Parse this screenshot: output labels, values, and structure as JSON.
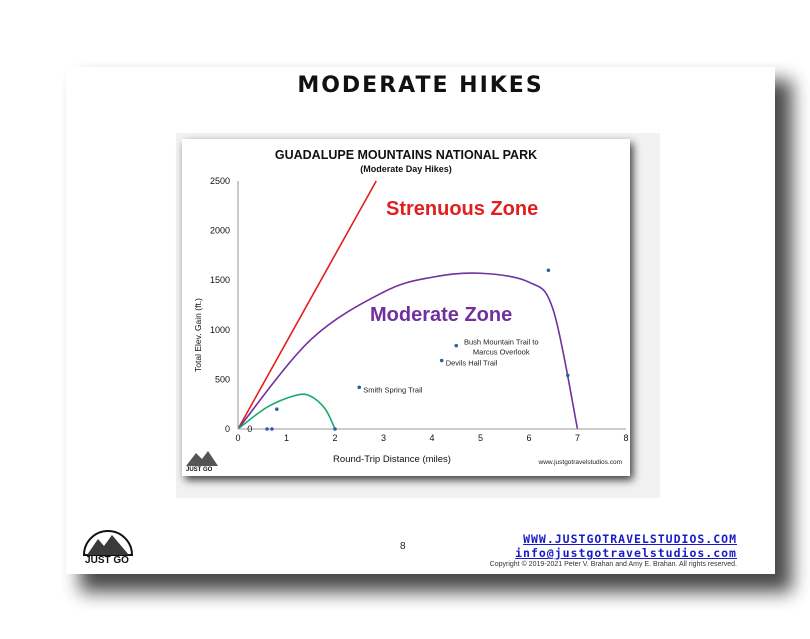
{
  "page": {
    "title": "MODERATE HIKES",
    "page_number": "8",
    "website": "WWW.JUSTGOTRAVELSTUDIOS.COM",
    "email": "info@justgotravelstudios.com",
    "copyright": "Copyright © 2019-2021 Peter V. Brahan and Amy E. Brahan.  All rights reserved.",
    "logo_text": "JUST GO"
  },
  "chart_data": {
    "type": "scatter",
    "title": "GUADALUPE MOUNTAINS NATIONAL PARK",
    "subtitle": "(Moderate Day Hikes)",
    "xlabel": "Round-Trip Distance (miles)",
    "ylabel": "Total Elev. Gain (ft.)",
    "xlim": [
      0,
      8
    ],
    "ylim": [
      0,
      2500
    ],
    "xticks": [
      0,
      1,
      2,
      3,
      4,
      5,
      6,
      7,
      8
    ],
    "yticks": [
      0,
      500,
      1000,
      1500,
      2000,
      2500
    ],
    "grid": false,
    "watermark": "www.justgotravelstudios.com",
    "zone_labels": [
      {
        "text": "Strenuous Zone",
        "color": "#e0201e"
      },
      {
        "text": "Moderate Zone",
        "color": "#7030a0"
      }
    ],
    "series": [
      {
        "type": "scatter",
        "color": "#2e5ea8",
        "points": [
          {
            "x": 0.6,
            "y": 0
          },
          {
            "x": 0.7,
            "y": 0
          },
          {
            "x": 0.8,
            "y": 200
          },
          {
            "x": 2.0,
            "y": 0
          },
          {
            "x": 2.5,
            "y": 420,
            "label": "Smith Spring Trail"
          },
          {
            "x": 4.2,
            "y": 690,
            "label": "Devils Hall Trail"
          },
          {
            "x": 4.5,
            "y": 840,
            "label": "Bush Mountain Trail to Marcus Overlook"
          },
          {
            "x": 6.4,
            "y": 1600
          },
          {
            "x": 6.8,
            "y": 540
          }
        ]
      },
      {
        "type": "line",
        "color": "#e0201e",
        "points": [
          {
            "x": 0,
            "y": 0
          },
          {
            "x": 2.85,
            "y": 2500
          }
        ]
      },
      {
        "type": "curve",
        "color": "#7030a0",
        "points": [
          {
            "x": 0,
            "y": 0
          },
          {
            "x": 1.5,
            "y": 900
          },
          {
            "x": 3.0,
            "y": 1380
          },
          {
            "x": 4.0,
            "y": 1530
          },
          {
            "x": 5.0,
            "y": 1570
          },
          {
            "x": 6.0,
            "y": 1480
          },
          {
            "x": 6.5,
            "y": 1200
          },
          {
            "x": 7.0,
            "y": 0
          }
        ]
      },
      {
        "type": "curve",
        "color": "#1aab6b",
        "points": [
          {
            "x": 0,
            "y": 0
          },
          {
            "x": 0.6,
            "y": 220
          },
          {
            "x": 1.2,
            "y": 340
          },
          {
            "x": 1.5,
            "y": 330
          },
          {
            "x": 1.8,
            "y": 200
          },
          {
            "x": 2.0,
            "y": 0
          }
        ]
      }
    ],
    "annotations": [
      {
        "text": "0",
        "x": 0.15,
        "y": 0
      }
    ]
  }
}
